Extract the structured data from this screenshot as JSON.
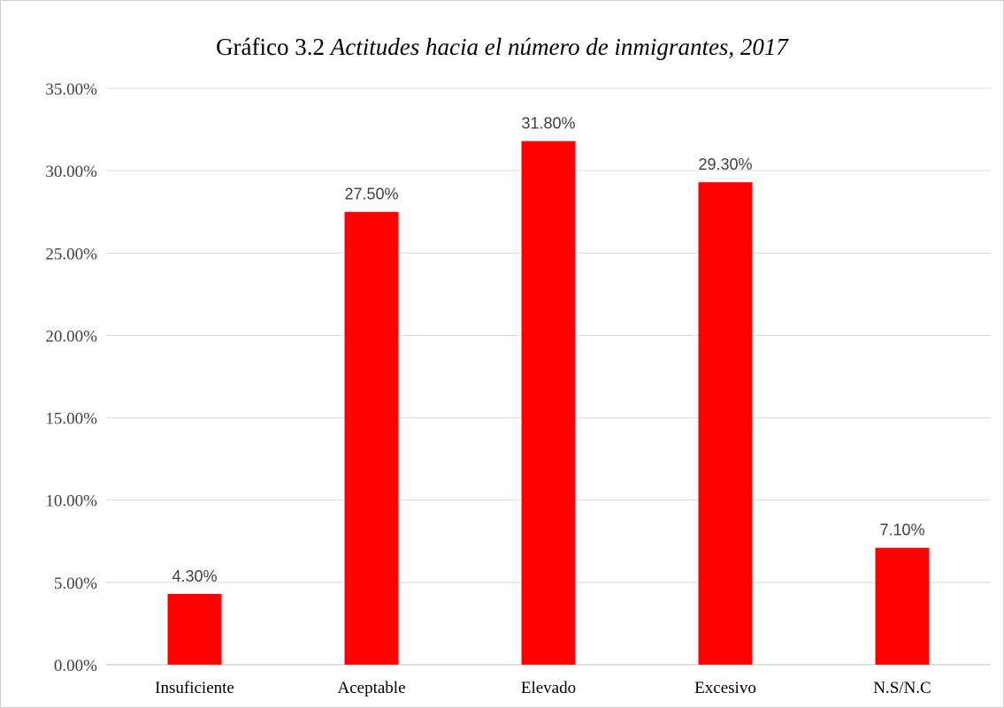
{
  "chart_data": {
    "type": "bar",
    "title_prefix": "Gráfico 3.2 ",
    "title_italic": "Actitudes hacia el número de inmigrantes, 2017",
    "categories": [
      "Insuficiente",
      "Aceptable",
      "Elevado",
      "Excesivo",
      "N.S/N.C"
    ],
    "values": [
      4.3,
      27.5,
      31.8,
      29.3,
      7.1
    ],
    "data_labels": [
      "4.30%",
      "27.50%",
      "31.80%",
      "29.30%",
      "7.10%"
    ],
    "ylim": [
      0,
      35
    ],
    "y_ticks": [
      0,
      5,
      10,
      15,
      20,
      25,
      30,
      35
    ],
    "y_tick_labels": [
      "0.00%",
      "5.00%",
      "10.00%",
      "15.00%",
      "20.00%",
      "25.00%",
      "30.00%",
      "35.00%"
    ],
    "bar_color": "#ff0000",
    "grid": true,
    "legend": false
  }
}
